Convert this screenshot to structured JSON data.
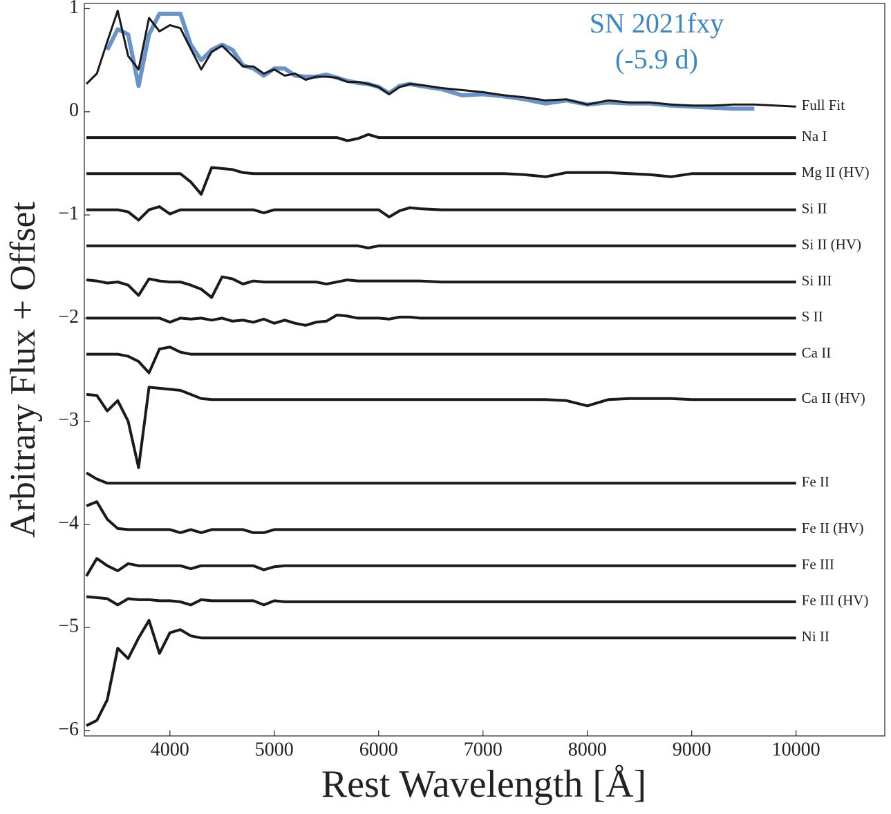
{
  "chart_data": {
    "type": "line",
    "xlabel": "Rest Wavelength [Å]",
    "ylabel": "Arbitrary Flux + Offset",
    "annotations": [
      "SN 2021fxy",
      "(-5.9 d)"
    ],
    "annotation_color": "#3a87c2",
    "xlim": [
      3180,
      10850
    ],
    "ylim": [
      -6.05,
      1.05
    ],
    "xticks": [
      4000,
      5000,
      6000,
      7000,
      8000,
      9000,
      10000
    ],
    "yticks": [
      1,
      0,
      {
        "value": -1,
        "label": "−1"
      },
      {
        "value": -2,
        "label": "−2"
      },
      {
        "value": -3,
        "label": "−3"
      },
      {
        "value": -4,
        "label": "−4"
      },
      {
        "value": -5,
        "label": "−5"
      },
      {
        "value": -6,
        "label": "−6"
      }
    ],
    "x": [
      3200,
      3300,
      3400,
      3500,
      3600,
      3700,
      3800,
      3900,
      4000,
      4100,
      4200,
      4300,
      4400,
      4500,
      4600,
      4700,
      4800,
      4900,
      5000,
      5100,
      5200,
      5300,
      5400,
      5500,
      5600,
      5700,
      5800,
      5900,
      6000,
      6100,
      6200,
      6300,
      6400,
      6600,
      6800,
      7000,
      7200,
      7400,
      7600,
      7800,
      8000,
      8200,
      8400,
      8600,
      8800,
      9000,
      9200,
      9400,
      9600,
      9800,
      10000
    ],
    "series": [
      {
        "color": "#6a93c9",
        "values": [
          null,
          null,
          0.6,
          0.8,
          0.75,
          0.25,
          0.75,
          0.95,
          0.95,
          0.95,
          0.65,
          0.5,
          0.6,
          0.65,
          0.6,
          0.45,
          0.42,
          0.35,
          0.42,
          0.42,
          0.35,
          0.34,
          0.34,
          0.36,
          0.33,
          0.3,
          0.28,
          0.27,
          0.24,
          0.18,
          0.25,
          0.27,
          0.25,
          0.22,
          0.16,
          0.17,
          0.15,
          0.12,
          0.08,
          0.11,
          0.07,
          0.09,
          0.08,
          0.08,
          0.06,
          0.05,
          0.04,
          0.03,
          0.03,
          null,
          null
        ]
      },
      {
        "name": "Full Fit",
        "color": "#1a1a1a",
        "values": [
          0.27,
          0.37,
          0.68,
          0.98,
          0.54,
          0.41,
          0.91,
          0.78,
          0.84,
          0.81,
          0.61,
          0.41,
          0.58,
          0.64,
          0.54,
          0.44,
          0.44,
          0.37,
          0.41,
          0.35,
          0.37,
          0.31,
          0.34,
          0.34,
          0.33,
          0.29,
          0.29,
          0.27,
          0.24,
          0.17,
          0.24,
          0.27,
          0.26,
          0.23,
          0.21,
          0.19,
          0.16,
          0.14,
          0.11,
          0.12,
          0.07,
          0.11,
          0.09,
          0.09,
          0.07,
          0.06,
          0.06,
          0.07,
          0.07,
          0.06,
          0.05
        ]
      },
      {
        "name": "Na I",
        "color": "#1a1a1a",
        "values": [
          -0.25,
          -0.25,
          -0.25,
          -0.25,
          -0.25,
          -0.25,
          -0.25,
          -0.25,
          -0.25,
          -0.25,
          -0.25,
          -0.25,
          -0.25,
          -0.25,
          -0.25,
          -0.25,
          -0.25,
          -0.25,
          -0.25,
          -0.25,
          -0.25,
          -0.25,
          -0.25,
          -0.25,
          -0.25,
          -0.28,
          -0.26,
          -0.22,
          -0.25,
          -0.25,
          -0.25,
          -0.25,
          -0.25,
          -0.25,
          -0.25,
          -0.25,
          -0.25,
          -0.25,
          -0.25,
          -0.25,
          -0.25,
          -0.25,
          -0.25,
          -0.25,
          -0.25,
          -0.25,
          -0.25,
          -0.25,
          -0.25,
          -0.25,
          -0.25
        ]
      },
      {
        "name": "Mg II (HV)",
        "color": "#1a1a1a",
        "values": [
          -0.6,
          -0.6,
          -0.6,
          -0.6,
          -0.6,
          -0.6,
          -0.6,
          -0.6,
          -0.6,
          -0.6,
          -0.68,
          -0.8,
          -0.54,
          -0.55,
          -0.56,
          -0.59,
          -0.6,
          -0.6,
          -0.6,
          -0.6,
          -0.6,
          -0.6,
          -0.6,
          -0.6,
          -0.6,
          -0.6,
          -0.6,
          -0.6,
          -0.6,
          -0.6,
          -0.6,
          -0.6,
          -0.6,
          -0.6,
          -0.6,
          -0.6,
          -0.6,
          -0.61,
          -0.63,
          -0.59,
          -0.59,
          -0.59,
          -0.6,
          -0.61,
          -0.63,
          -0.6,
          -0.6,
          -0.6,
          -0.6,
          -0.6,
          -0.6
        ]
      },
      {
        "name": "Si II",
        "color": "#1a1a1a",
        "values": [
          -0.95,
          -0.95,
          -0.95,
          -0.95,
          -0.97,
          -1.05,
          -0.95,
          -0.92,
          -0.99,
          -0.95,
          -0.95,
          -0.95,
          -0.95,
          -0.95,
          -0.95,
          -0.95,
          -0.95,
          -0.98,
          -0.95,
          -0.95,
          -0.95,
          -0.95,
          -0.95,
          -0.95,
          -0.95,
          -0.95,
          -0.95,
          -0.95,
          -0.95,
          -1.02,
          -0.96,
          -0.93,
          -0.94,
          -0.95,
          -0.95,
          -0.95,
          -0.95,
          -0.95,
          -0.95,
          -0.95,
          -0.95,
          -0.95,
          -0.95,
          -0.95,
          -0.95,
          -0.95,
          -0.95,
          -0.95,
          -0.95,
          -0.95,
          -0.95
        ]
      },
      {
        "name": "Si II (HV)",
        "color": "#1a1a1a",
        "values": [
          -1.3,
          -1.3,
          -1.3,
          -1.3,
          -1.3,
          -1.3,
          -1.3,
          -1.3,
          -1.3,
          -1.3,
          -1.3,
          -1.3,
          -1.3,
          -1.3,
          -1.3,
          -1.3,
          -1.3,
          -1.3,
          -1.3,
          -1.3,
          -1.3,
          -1.3,
          -1.3,
          -1.3,
          -1.3,
          -1.3,
          -1.3,
          -1.32,
          -1.3,
          -1.3,
          -1.3,
          -1.3,
          -1.3,
          -1.3,
          -1.3,
          -1.3,
          -1.3,
          -1.3,
          -1.3,
          -1.3,
          -1.3,
          -1.3,
          -1.3,
          -1.3,
          -1.3,
          -1.3,
          -1.3,
          -1.3,
          -1.3,
          -1.3,
          -1.3
        ]
      },
      {
        "name": "Si III",
        "color": "#1a1a1a",
        "values": [
          -1.63,
          -1.64,
          -1.66,
          -1.65,
          -1.68,
          -1.78,
          -1.62,
          -1.64,
          -1.65,
          -1.65,
          -1.68,
          -1.72,
          -1.8,
          -1.6,
          -1.62,
          -1.67,
          -1.64,
          -1.65,
          -1.65,
          -1.65,
          -1.65,
          -1.65,
          -1.65,
          -1.67,
          -1.65,
          -1.63,
          -1.64,
          -1.64,
          -1.64,
          -1.64,
          -1.64,
          -1.64,
          -1.64,
          -1.65,
          -1.65,
          -1.65,
          -1.65,
          -1.65,
          -1.65,
          -1.65,
          -1.65,
          -1.65,
          -1.65,
          -1.65,
          -1.65,
          -1.65,
          -1.65,
          -1.65,
          -1.65,
          -1.65,
          -1.65
        ]
      },
      {
        "name": "S II",
        "color": "#1a1a1a",
        "values": [
          -2.0,
          -2.0,
          -2.0,
          -2.0,
          -2.0,
          -2.0,
          -2.0,
          -2.0,
          -2.04,
          -2.0,
          -2.01,
          -2.0,
          -2.02,
          -2.0,
          -2.03,
          -2.02,
          -2.04,
          -2.01,
          -2.05,
          -2.02,
          -2.05,
          -2.07,
          -2.04,
          -2.03,
          -1.97,
          -1.98,
          -2.0,
          -2.0,
          -2.0,
          -2.01,
          -1.99,
          -1.99,
          -2.0,
          -2.0,
          -2.0,
          -2.0,
          -2.0,
          -2.0,
          -2.0,
          -2.0,
          -2.0,
          -2.0,
          -2.0,
          -2.0,
          -2.0,
          -2.0,
          -2.0,
          -2.0,
          -2.0,
          -2.0,
          -2.0
        ]
      },
      {
        "name": "Ca II",
        "color": "#1a1a1a",
        "values": [
          -2.35,
          -2.35,
          -2.35,
          -2.35,
          -2.37,
          -2.42,
          -2.53,
          -2.3,
          -2.28,
          -2.33,
          -2.35,
          -2.35,
          -2.35,
          -2.35,
          -2.35,
          -2.35,
          -2.35,
          -2.35,
          -2.35,
          -2.35,
          -2.35,
          -2.35,
          -2.35,
          -2.35,
          -2.35,
          -2.35,
          -2.35,
          -2.35,
          -2.35,
          -2.35,
          -2.35,
          -2.35,
          -2.35,
          -2.35,
          -2.35,
          -2.35,
          -2.35,
          -2.35,
          -2.35,
          -2.35,
          -2.35,
          -2.35,
          -2.35,
          -2.35,
          -2.35,
          -2.35,
          -2.35,
          -2.35,
          -2.35,
          -2.35,
          -2.35
        ]
      },
      {
        "name": "Ca II (HV)",
        "color": "#1a1a1a",
        "values": [
          -2.74,
          -2.75,
          -2.9,
          -2.8,
          -3.0,
          -3.45,
          -2.67,
          -2.68,
          -2.69,
          -2.7,
          -2.74,
          -2.78,
          -2.79,
          -2.79,
          -2.79,
          -2.79,
          -2.79,
          -2.79,
          -2.79,
          -2.79,
          -2.79,
          -2.79,
          -2.79,
          -2.79,
          -2.79,
          -2.79,
          -2.79,
          -2.79,
          -2.79,
          -2.79,
          -2.79,
          -2.79,
          -2.79,
          -2.79,
          -2.79,
          -2.79,
          -2.79,
          -2.79,
          -2.79,
          -2.8,
          -2.85,
          -2.79,
          -2.78,
          -2.78,
          -2.78,
          -2.79,
          -2.79,
          -2.79,
          -2.79,
          -2.79,
          -2.79
        ]
      },
      {
        "name": "Fe II",
        "color": "#1a1a1a",
        "values": [
          -3.5,
          -3.56,
          -3.6,
          -3.6,
          -3.6,
          -3.6,
          -3.6,
          -3.6,
          -3.6,
          -3.6,
          -3.6,
          -3.6,
          -3.6,
          -3.6,
          -3.6,
          -3.6,
          -3.6,
          -3.6,
          -3.6,
          -3.6,
          -3.6,
          -3.6,
          -3.6,
          -3.6,
          -3.6,
          -3.6,
          -3.6,
          -3.6,
          -3.6,
          -3.6,
          -3.6,
          -3.6,
          -3.6,
          -3.6,
          -3.6,
          -3.6,
          -3.6,
          -3.6,
          -3.6,
          -3.6,
          -3.6,
          -3.6,
          -3.6,
          -3.6,
          -3.6,
          -3.6,
          -3.6,
          -3.6,
          -3.6,
          -3.6,
          -3.6
        ]
      },
      {
        "name": "Fe II (HV)",
        "color": "#1a1a1a",
        "values": [
          -3.82,
          -3.78,
          -3.95,
          -4.04,
          -4.05,
          -4.05,
          -4.05,
          -4.05,
          -4.05,
          -4.08,
          -4.05,
          -4.08,
          -4.05,
          -4.05,
          -4.05,
          -4.05,
          -4.08,
          -4.08,
          -4.05,
          -4.05,
          -4.05,
          -4.05,
          -4.05,
          -4.05,
          -4.05,
          -4.05,
          -4.05,
          -4.05,
          -4.05,
          -4.05,
          -4.05,
          -4.05,
          -4.05,
          -4.05,
          -4.05,
          -4.05,
          -4.05,
          -4.05,
          -4.05,
          -4.05,
          -4.05,
          -4.05,
          -4.05,
          -4.05,
          -4.05,
          -4.05,
          -4.05,
          -4.05,
          -4.05,
          -4.05,
          -4.05
        ]
      },
      {
        "name": "Fe III",
        "color": "#1a1a1a",
        "values": [
          -4.5,
          -4.33,
          -4.4,
          -4.45,
          -4.38,
          -4.4,
          -4.4,
          -4.4,
          -4.4,
          -4.4,
          -4.43,
          -4.4,
          -4.4,
          -4.4,
          -4.4,
          -4.4,
          -4.4,
          -4.44,
          -4.41,
          -4.4,
          -4.4,
          -4.4,
          -4.4,
          -4.4,
          -4.4,
          -4.4,
          -4.4,
          -4.4,
          -4.4,
          -4.4,
          -4.4,
          -4.4,
          -4.4,
          -4.4,
          -4.4,
          -4.4,
          -4.4,
          -4.4,
          -4.4,
          -4.4,
          -4.4,
          -4.4,
          -4.4,
          -4.4,
          -4.4,
          -4.4,
          -4.4,
          -4.4,
          -4.4,
          -4.4,
          -4.4
        ]
      },
      {
        "name": "Fe III (HV)",
        "color": "#1a1a1a",
        "values": [
          -4.7,
          -4.71,
          -4.72,
          -4.78,
          -4.72,
          -4.73,
          -4.73,
          -4.74,
          -4.74,
          -4.75,
          -4.78,
          -4.73,
          -4.74,
          -4.74,
          -4.74,
          -4.74,
          -4.74,
          -4.78,
          -4.74,
          -4.75,
          -4.75,
          -4.75,
          -4.75,
          -4.75,
          -4.75,
          -4.75,
          -4.75,
          -4.75,
          -4.75,
          -4.75,
          -4.75,
          -4.75,
          -4.75,
          -4.75,
          -4.75,
          -4.75,
          -4.75,
          -4.75,
          -4.75,
          -4.75,
          -4.75,
          -4.75,
          -4.75,
          -4.75,
          -4.75,
          -4.75,
          -4.75,
          -4.75,
          -4.75,
          -4.75,
          -4.75
        ]
      },
      {
        "name": "Ni II",
        "color": "#1a1a1a",
        "values": [
          -5.95,
          -5.9,
          -5.7,
          -5.2,
          -5.3,
          -5.1,
          -4.93,
          -5.25,
          -5.05,
          -5.02,
          -5.08,
          -5.1,
          -5.1,
          -5.1,
          -5.1,
          -5.1,
          -5.1,
          -5.1,
          -5.1,
          -5.1,
          -5.1,
          -5.1,
          -5.1,
          -5.1,
          -5.1,
          -5.1,
          -5.1,
          -5.1,
          -5.1,
          -5.1,
          -5.1,
          -5.1,
          -5.1,
          -5.1,
          -5.1,
          -5.1,
          -5.1,
          -5.1,
          -5.1,
          -5.1,
          -5.1,
          -5.1,
          -5.1,
          -5.1,
          -5.1,
          -5.1,
          -5.1,
          -5.1,
          -5.1,
          -5.1,
          -5.1
        ]
      }
    ]
  }
}
